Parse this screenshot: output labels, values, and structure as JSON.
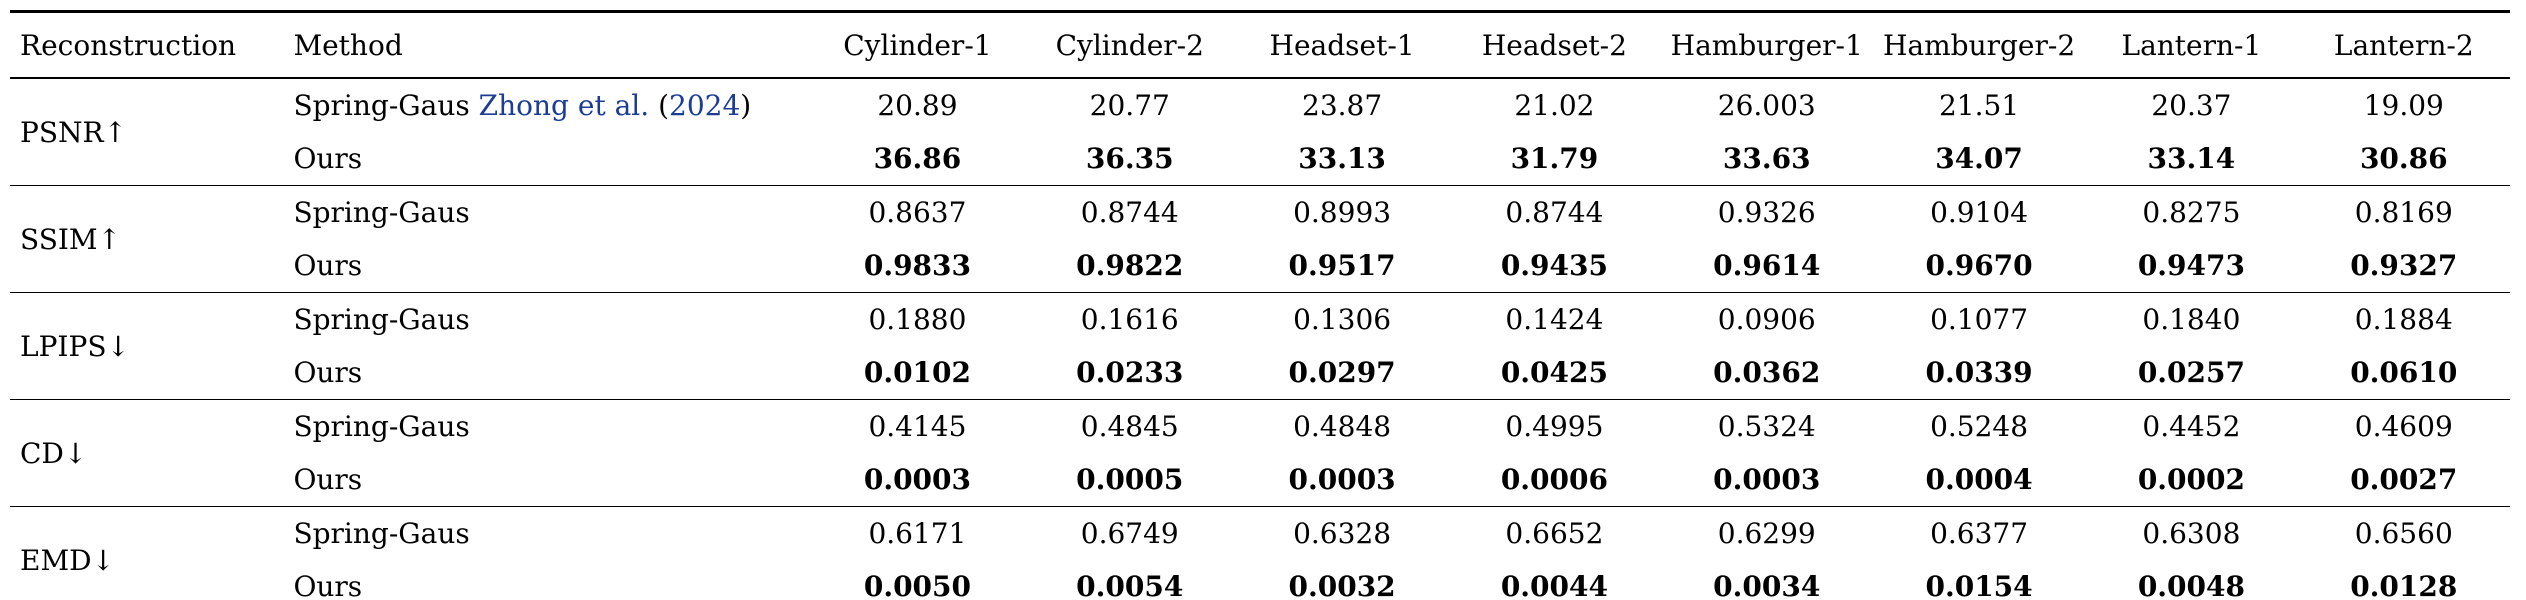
{
  "colors": {
    "citation_blue": "#1c3c96",
    "text": "#000000",
    "rule": "#000000"
  },
  "table": {
    "headers": {
      "reconstruction": "Reconstruction",
      "method": "Method",
      "objects": [
        "Cylinder-1",
        "Cylinder-2",
        "Headset-1",
        "Headset-2",
        "Hamburger-1",
        "Hamburger-2",
        "Lantern-1",
        "Lantern-2"
      ]
    },
    "citation": {
      "authors": "Zhong et al.",
      "space": " ",
      "paren_open": "(",
      "year": "2024",
      "paren_close": ")"
    },
    "groups": [
      {
        "metric": "PSNR↑",
        "rows": [
          {
            "method": "Spring-Gaus",
            "has_citation": true,
            "values_bold": false,
            "values": [
              "20.89",
              "20.77",
              "23.87",
              "21.02",
              "26.003",
              "21.51",
              "20.37",
              "19.09"
            ]
          },
          {
            "method": "Ours",
            "has_citation": false,
            "values_bold": true,
            "values": [
              "36.86",
              "36.35",
              "33.13",
              "31.79",
              "33.63",
              "34.07",
              "33.14",
              "30.86"
            ]
          }
        ]
      },
      {
        "metric": "SSIM↑",
        "rows": [
          {
            "method": "Spring-Gaus",
            "has_citation": false,
            "values_bold": false,
            "values": [
              "0.8637",
              "0.8744",
              "0.8993",
              "0.8744",
              "0.9326",
              "0.9104",
              "0.8275",
              "0.8169"
            ]
          },
          {
            "method": "Ours",
            "has_citation": false,
            "values_bold": true,
            "values": [
              "0.9833",
              "0.9822",
              "0.9517",
              "0.9435",
              "0.9614",
              "0.9670",
              "0.9473",
              "0.9327"
            ]
          }
        ]
      },
      {
        "metric": "LPIPS↓",
        "rows": [
          {
            "method": "Spring-Gaus",
            "has_citation": false,
            "values_bold": false,
            "values": [
              "0.1880",
              "0.1616",
              "0.1306",
              "0.1424",
              "0.0906",
              "0.1077",
              "0.1840",
              "0.1884"
            ]
          },
          {
            "method": "Ours",
            "has_citation": false,
            "values_bold": true,
            "values": [
              "0.0102",
              "0.0233",
              "0.0297",
              "0.0425",
              "0.0362",
              "0.0339",
              "0.0257",
              "0.0610"
            ]
          }
        ]
      },
      {
        "metric": "CD↓",
        "rows": [
          {
            "method": "Spring-Gaus",
            "has_citation": false,
            "values_bold": false,
            "values": [
              "0.4145",
              "0.4845",
              "0.4848",
              "0.4995",
              "0.5324",
              "0.5248",
              "0.4452",
              "0.4609"
            ]
          },
          {
            "method": "Ours",
            "has_citation": false,
            "values_bold": true,
            "values": [
              "0.0003",
              "0.0005",
              "0.0003",
              "0.0006",
              "0.0003",
              "0.0004",
              "0.0002",
              "0.0027"
            ]
          }
        ]
      },
      {
        "metric": "EMD↓",
        "rows": [
          {
            "method": "Spring-Gaus",
            "has_citation": false,
            "values_bold": false,
            "values": [
              "0.6171",
              "0.6749",
              "0.6328",
              "0.6652",
              "0.6299",
              "0.6377",
              "0.6308",
              "0.6560"
            ]
          },
          {
            "method": "Ours",
            "has_citation": false,
            "values_bold": true,
            "values": [
              "0.0050",
              "0.0054",
              "0.0032",
              "0.0044",
              "0.0034",
              "0.0154",
              "0.0048",
              "0.0128"
            ]
          }
        ]
      }
    ]
  }
}
